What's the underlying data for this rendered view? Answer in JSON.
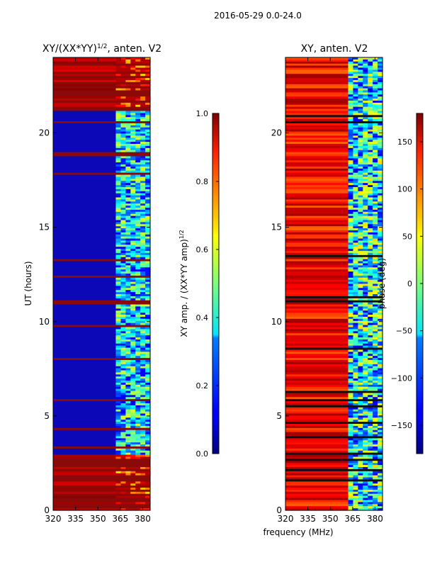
{
  "suptitle": "2016-05-29 0.0-24.0",
  "xlabel": "frequency (MHz)",
  "colors": {
    "deep_blue": "#0c08b8",
    "red_band": "#8a0a0a",
    "black_band": "#101010"
  },
  "chart_data": [
    {
      "type": "heatmap",
      "title_main": "XY/(XX*YY)",
      "title_sup": "1/2",
      "title_tail": ", anten. V2",
      "ylabel": "UT (hours)",
      "ylim": [
        0,
        24
      ],
      "xlim": [
        320,
        385
      ],
      "x_ticks": [
        320,
        335,
        350,
        365,
        380
      ],
      "y_ticks": [
        0,
        5,
        10,
        15,
        20
      ],
      "colorbar": {
        "label_main": "XY amp. / (XX*YY amp)",
        "label_sup": "1/2",
        "range": [
          0.0,
          1.0
        ],
        "ticks": [
          "0.0",
          "0.2",
          "0.4",
          "0.6",
          "0.8",
          "1.0"
        ],
        "tick_values": [
          0.0,
          0.2,
          0.4,
          0.6,
          0.8,
          1.0
        ],
        "colormap": "jet"
      },
      "structure": {
        "low_freq_value": 0.05,
        "high_freq_start_mhz": 362,
        "high_freq_value_range": [
          0.1,
          0.6
        ],
        "saturated_hours": [
          [
            0,
            2.9
          ],
          [
            21.2,
            24
          ]
        ]
      }
    },
    {
      "type": "heatmap",
      "title_main": "XY, anten. V2",
      "ylabel": "",
      "ylim": [
        0,
        24
      ],
      "xlim": [
        320,
        385
      ],
      "x_ticks": [
        320,
        335,
        350,
        365,
        380
      ],
      "y_ticks": [
        0,
        5,
        10,
        15,
        20
      ],
      "colorbar": {
        "label_main": "phase (deg)",
        "range": [
          -180,
          180
        ],
        "ticks": [
          "−150",
          "−100",
          "−50",
          "0",
          "50",
          "100",
          "150"
        ],
        "tick_values": [
          -150,
          -100,
          -50,
          0,
          50,
          100,
          150
        ],
        "colormap": "jet"
      },
      "structure": {
        "low_freq_phase_range": [
          100,
          170
        ],
        "high_freq_start_mhz": 362,
        "high_freq_phase_range": [
          -150,
          60
        ]
      }
    }
  ]
}
